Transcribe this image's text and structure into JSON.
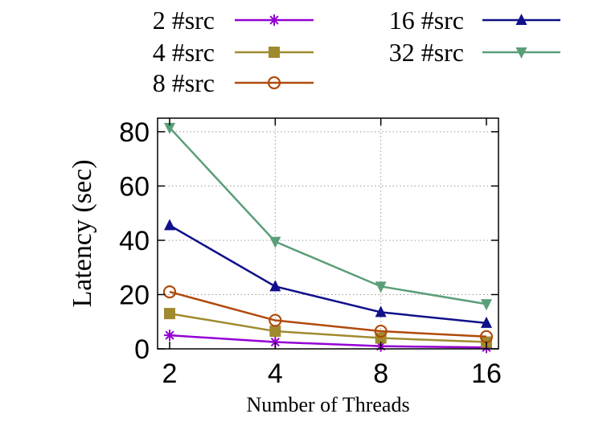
{
  "chart_data": {
    "type": "line",
    "categories": [
      "2",
      "4",
      "8",
      "16"
    ],
    "xlabel": "Number of Threads",
    "ylabel": "Latency (sec)",
    "ylim": [
      0,
      85
    ],
    "yticks": [
      "0",
      "20",
      "40",
      "60",
      "80"
    ],
    "grid": true,
    "legend_position": "top",
    "series": [
      {
        "name": "2 #src",
        "values": [
          5,
          2.5,
          1,
          0.5
        ],
        "color": "#9400d3",
        "marker": "star"
      },
      {
        "name": "4 #src",
        "values": [
          13,
          6.5,
          4,
          2.5
        ],
        "color": "#a08a2e",
        "marker": "filled-square"
      },
      {
        "name": "8 #src",
        "values": [
          21,
          10.5,
          6.5,
          4.5
        ],
        "color": "#b04a0a",
        "marker": "open-circle"
      },
      {
        "name": "16 #src",
        "values": [
          45.5,
          23,
          13.5,
          9.5
        ],
        "color": "#10108a",
        "marker": "filled-triangle-up"
      },
      {
        "name": "32 #src",
        "values": [
          81.5,
          39.5,
          23,
          16.5
        ],
        "color": "#5a9e78",
        "marker": "filled-triangle-down"
      }
    ]
  }
}
